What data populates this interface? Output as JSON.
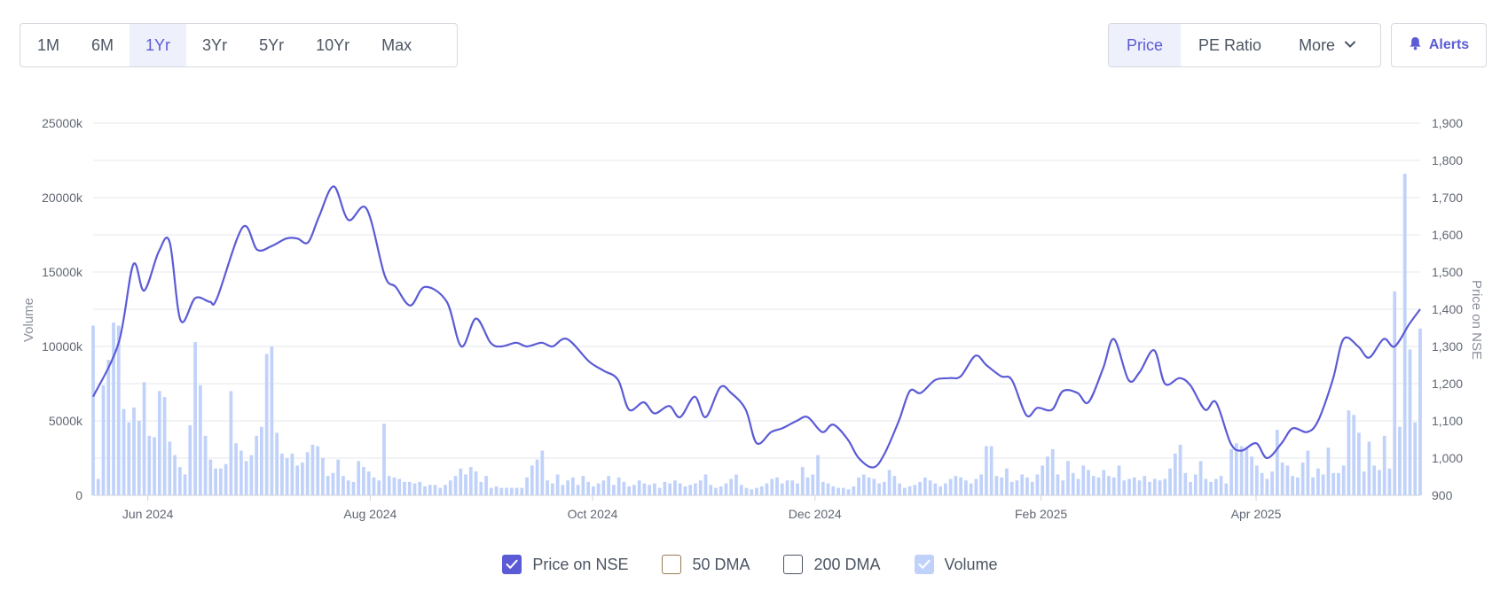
{
  "toolbar": {
    "ranges": [
      "1M",
      "6M",
      "1Yr",
      "3Yr",
      "5Yr",
      "10Yr",
      "Max"
    ],
    "active_range": "1Yr",
    "metrics": [
      "Price",
      "PE Ratio",
      "More"
    ],
    "active_metric": "Price",
    "alerts_label": "Alerts"
  },
  "legend": {
    "price": "Price on NSE",
    "dma50": "50 DMA",
    "dma200": "200 DMA",
    "volume": "Volume"
  },
  "colors": {
    "accent": "#5b5bd6",
    "price_line": "#5b5bd6",
    "volume_bar": "#c1d2fa",
    "grid": "#e5e7eb"
  },
  "icons": {
    "alerts": "bell-icon",
    "more": "chevron-down-icon",
    "checked": "check-icon"
  },
  "chart_data": {
    "type": "line",
    "x_labels": [
      "Jun 2024",
      "Aug 2024",
      "Oct 2024",
      "Dec 2024",
      "Feb 2025",
      "Apr 2025"
    ],
    "x_label_dates": [
      "2024-06-01",
      "2024-08-01",
      "2024-10-01",
      "2024-12-01",
      "2025-02-01",
      "2025-04-01"
    ],
    "x_range": [
      "2024-05-17",
      "2025-05-16"
    ],
    "y_left": {
      "label": "Volume",
      "ticks": [
        "0",
        "5000k",
        "10000k",
        "15000k",
        "20000k",
        "25000k"
      ],
      "range": [
        0,
        25000
      ]
    },
    "y_right": {
      "label": "Price on NSE",
      "ticks": [
        "900",
        "1,000",
        "1,100",
        "1,200",
        "1,300",
        "1,400",
        "1,500",
        "1,600",
        "1,700",
        "1,800",
        "1,900"
      ],
      "range": [
        900,
        1900
      ]
    },
    "grid": true,
    "legend_position": "bottom-center",
    "series": [
      {
        "name": "Price on NSE",
        "kind": "line",
        "points": [
          [
            "2024-05-17",
            1165
          ],
          [
            "2024-05-24",
            1310
          ],
          [
            "2024-05-28",
            1520
          ],
          [
            "2024-05-31",
            1450
          ],
          [
            "2024-06-04",
            1555
          ],
          [
            "2024-06-07",
            1580
          ],
          [
            "2024-06-10",
            1370
          ],
          [
            "2024-06-14",
            1430
          ],
          [
            "2024-06-18",
            1420
          ],
          [
            "2024-06-20",
            1430
          ],
          [
            "2024-06-27",
            1620
          ],
          [
            "2024-07-01",
            1560
          ],
          [
            "2024-07-05",
            1570
          ],
          [
            "2024-07-09",
            1590
          ],
          [
            "2024-07-12",
            1590
          ],
          [
            "2024-07-15",
            1580
          ],
          [
            "2024-07-18",
            1650
          ],
          [
            "2024-07-22",
            1730
          ],
          [
            "2024-07-26",
            1640
          ],
          [
            "2024-07-31",
            1670
          ],
          [
            "2024-08-05",
            1490
          ],
          [
            "2024-08-08",
            1460
          ],
          [
            "2024-08-12",
            1410
          ],
          [
            "2024-08-16",
            1460
          ],
          [
            "2024-08-22",
            1420
          ],
          [
            "2024-08-26",
            1300
          ],
          [
            "2024-08-30",
            1375
          ],
          [
            "2024-09-03",
            1310
          ],
          [
            "2024-09-06",
            1300
          ],
          [
            "2024-09-10",
            1310
          ],
          [
            "2024-09-13",
            1300
          ],
          [
            "2024-09-17",
            1310
          ],
          [
            "2024-09-20",
            1300
          ],
          [
            "2024-09-24",
            1320
          ],
          [
            "2024-09-30",
            1260
          ],
          [
            "2024-10-04",
            1235
          ],
          [
            "2024-10-08",
            1210
          ],
          [
            "2024-10-11",
            1130
          ],
          [
            "2024-10-15",
            1150
          ],
          [
            "2024-10-18",
            1120
          ],
          [
            "2024-10-22",
            1140
          ],
          [
            "2024-10-25",
            1110
          ],
          [
            "2024-10-29",
            1165
          ],
          [
            "2024-11-01",
            1110
          ],
          [
            "2024-11-05",
            1190
          ],
          [
            "2024-11-08",
            1175
          ],
          [
            "2024-11-12",
            1130
          ],
          [
            "2024-11-15",
            1040
          ],
          [
            "2024-11-19",
            1070
          ],
          [
            "2024-11-22",
            1080
          ],
          [
            "2024-11-26",
            1100
          ],
          [
            "2024-11-29",
            1110
          ],
          [
            "2024-12-03",
            1070
          ],
          [
            "2024-12-06",
            1090
          ],
          [
            "2024-12-10",
            1050
          ],
          [
            "2024-12-13",
            1000
          ],
          [
            "2024-12-17",
            975
          ],
          [
            "2024-12-20",
            1010
          ],
          [
            "2024-12-24",
            1100
          ],
          [
            "2024-12-27",
            1180
          ],
          [
            "2024-12-30",
            1175
          ],
          [
            "2025-01-03",
            1210
          ],
          [
            "2025-01-07",
            1215
          ],
          [
            "2025-01-10",
            1220
          ],
          [
            "2025-01-14",
            1275
          ],
          [
            "2025-01-17",
            1250
          ],
          [
            "2025-01-21",
            1220
          ],
          [
            "2025-01-24",
            1210
          ],
          [
            "2025-01-28",
            1115
          ],
          [
            "2025-01-31",
            1135
          ],
          [
            "2025-02-04",
            1130
          ],
          [
            "2025-02-07",
            1180
          ],
          [
            "2025-02-11",
            1175
          ],
          [
            "2025-02-14",
            1150
          ],
          [
            "2025-02-18",
            1240
          ],
          [
            "2025-02-21",
            1320
          ],
          [
            "2025-02-25",
            1210
          ],
          [
            "2025-02-28",
            1230
          ],
          [
            "2025-03-04",
            1290
          ],
          [
            "2025-03-07",
            1200
          ],
          [
            "2025-03-11",
            1215
          ],
          [
            "2025-03-14",
            1195
          ],
          [
            "2025-03-18",
            1130
          ],
          [
            "2025-03-21",
            1150
          ],
          [
            "2025-03-25",
            1040
          ],
          [
            "2025-03-28",
            1020
          ],
          [
            "2025-04-01",
            1040
          ],
          [
            "2025-04-04",
            1000
          ],
          [
            "2025-04-08",
            1040
          ],
          [
            "2025-04-11",
            1080
          ],
          [
            "2025-04-15",
            1070
          ],
          [
            "2025-04-18",
            1100
          ],
          [
            "2025-04-22",
            1210
          ],
          [
            "2025-04-25",
            1320
          ],
          [
            "2025-04-29",
            1300
          ],
          [
            "2025-05-02",
            1270
          ],
          [
            "2025-05-06",
            1320
          ],
          [
            "2025-05-09",
            1300
          ],
          [
            "2025-05-13",
            1360
          ],
          [
            "2025-05-16",
            1400
          ]
        ]
      },
      {
        "name": "50 DMA",
        "kind": "line",
        "enabled": false,
        "points": []
      },
      {
        "name": "200 DMA",
        "kind": "line",
        "enabled": false,
        "points": []
      },
      {
        "name": "Volume",
        "kind": "bar",
        "unit": "k",
        "values_k": [
          11400,
          1100,
          7400,
          9100,
          11600,
          11400,
          5800,
          4900,
          5900,
          5000,
          7600,
          4000,
          3900,
          7000,
          6600,
          3600,
          2700,
          1900,
          1400,
          4700,
          10300,
          7400,
          4000,
          2400,
          1800,
          1800,
          2100,
          7000,
          3500,
          3000,
          2300,
          2700,
          4000,
          4600,
          9500,
          10000,
          4200,
          2800,
          2500,
          2800,
          2000,
          2200,
          2900,
          3400,
          3300,
          2500,
          1300,
          1500,
          2400,
          1300,
          1000,
          900,
          2300,
          1900,
          1600,
          1200,
          1000,
          4800,
          1300,
          1200,
          1100,
          900,
          900,
          800,
          900,
          600,
          700,
          700,
          500,
          700,
          1000,
          1300,
          1800,
          1400,
          1900,
          1600,
          900,
          1300,
          500,
          600,
          500,
          500,
          500,
          500,
          500,
          1200,
          2000,
          2400,
          3000,
          1000,
          800,
          1400,
          700,
          1000,
          1200,
          700,
          1300,
          900,
          600,
          800,
          1000,
          1300,
          700,
          1200,
          900,
          600,
          700,
          1000,
          800,
          700,
          800,
          500,
          900,
          800,
          1000,
          800,
          600,
          700,
          800,
          1000,
          1400,
          700,
          500,
          600,
          800,
          1100,
          1400,
          700,
          500,
          400,
          500,
          600,
          800,
          1100,
          1200,
          800,
          1000,
          1000,
          800,
          1900,
          1200,
          1400,
          2700,
          900,
          800,
          600,
          500,
          500,
          400,
          600,
          1200,
          1400,
          1200,
          1100,
          800,
          900,
          1700,
          1300,
          800,
          500,
          600,
          700,
          900,
          1200,
          1000,
          800,
          600,
          800,
          1100,
          1300,
          1200,
          1000,
          800,
          1100,
          1400,
          3300,
          3300,
          1300,
          1200,
          1800,
          900,
          1000,
          1400,
          1200,
          900,
          1400,
          2000,
          2600,
          3100,
          1400,
          1000,
          2300,
          1500,
          1100,
          2000,
          1700,
          1300,
          1200,
          1700,
          1300,
          1200,
          2000,
          1000,
          1100,
          1200,
          1000,
          1300,
          900,
          1100,
          1000,
          1100,
          1800,
          2800,
          3400,
          1500,
          900,
          1400,
          2300,
          1100,
          900,
          1100,
          1300,
          800,
          3100,
          3500,
          3300,
          3200,
          2600,
          2000,
          1500,
          1100,
          1600,
          4400,
          2200,
          2000,
          1300,
          1200,
          2200,
          3000,
          1200,
          1800,
          1400,
          3200,
          1500,
          1500,
          2000,
          5700,
          5400,
          4200,
          1600,
          3600,
          2000,
          1700,
          4000,
          1800,
          13700,
          4600,
          21600,
          9800,
          4900,
          11200
        ]
      }
    ]
  }
}
